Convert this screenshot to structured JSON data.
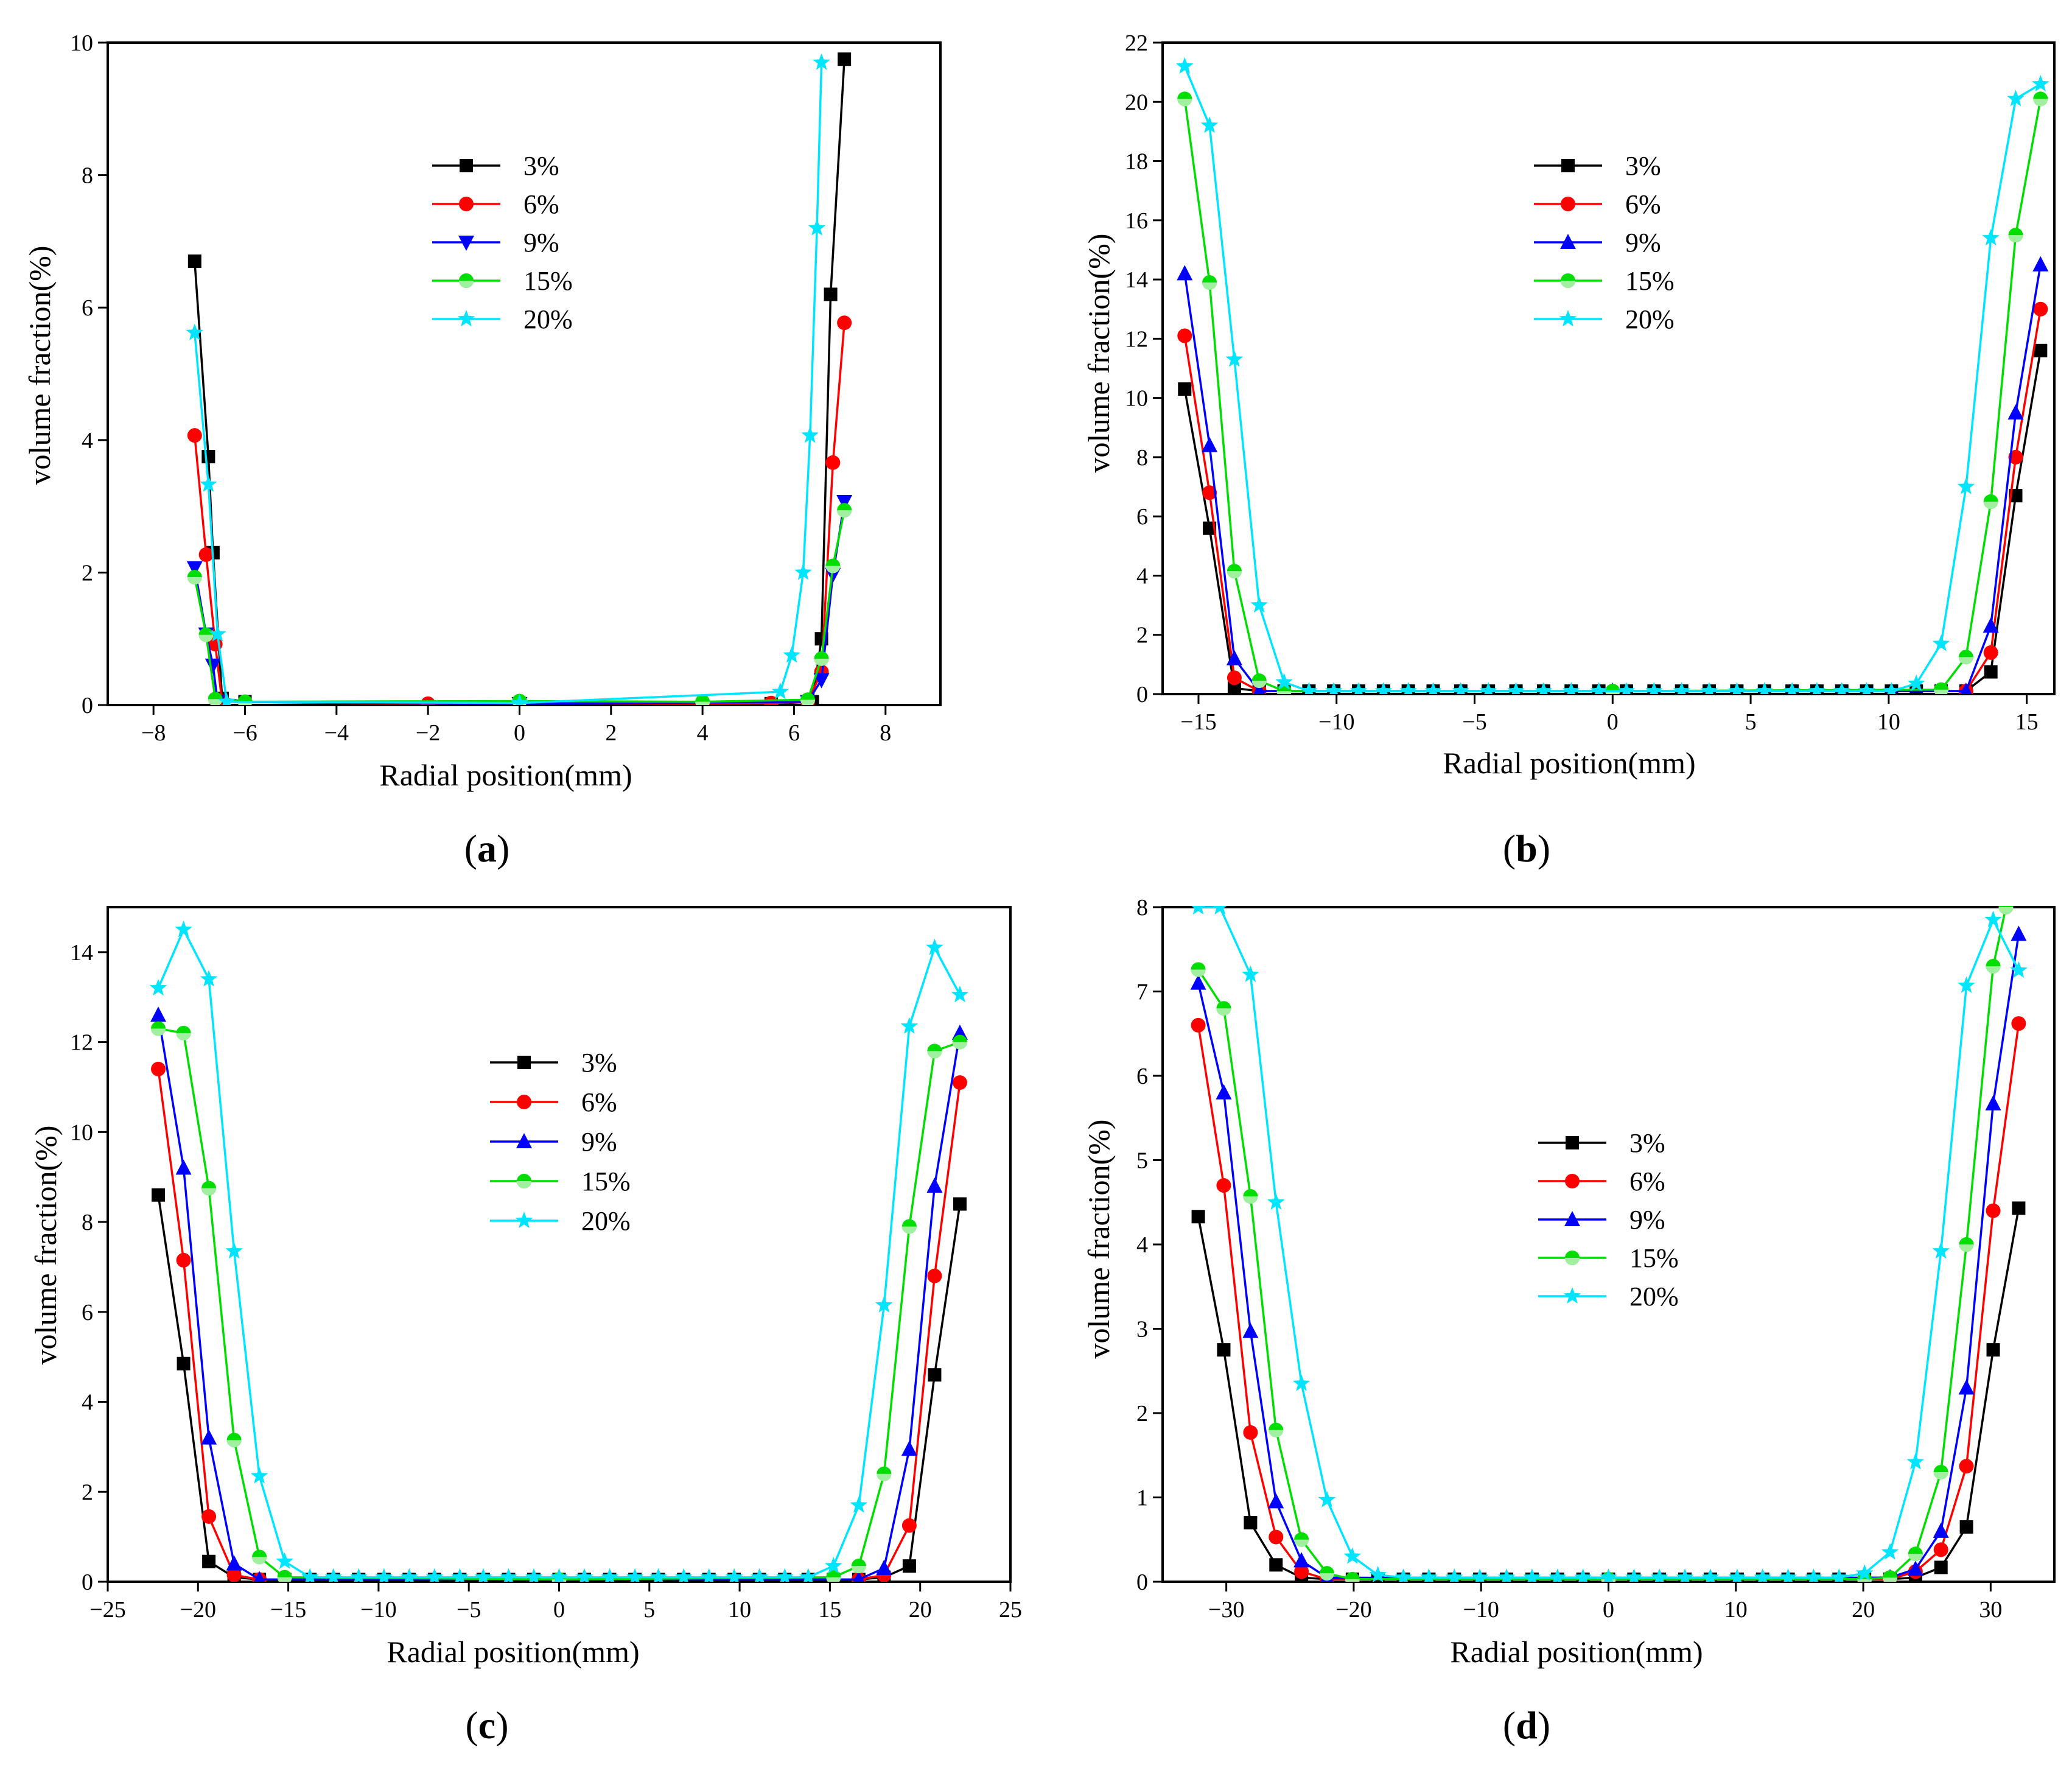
{
  "chart_data": [
    {
      "type": "line",
      "caption": "a",
      "title": "",
      "xlabel": "Radial position(mm)",
      "ylabel": "volume fraction(%)",
      "xlim": [
        -9,
        9.2
      ],
      "ylim": [
        0,
        10
      ],
      "xticks": [
        -8,
        -6,
        -4,
        -2,
        0,
        2,
        4,
        6,
        8
      ],
      "yticks": [
        0,
        2,
        4,
        6,
        8,
        10
      ],
      "legend": "center",
      "series": [
        {
          "name": "3%",
          "color": "#000000",
          "marker": "square",
          "x": [
            -7.1,
            -6.8,
            -6.7,
            -6.5,
            -6.0,
            0,
            5.5,
            6.4,
            6.6,
            6.8,
            7.1
          ],
          "y": [
            6.7,
            3.75,
            2.3,
            0.1,
            0.05,
            0.02,
            0.02,
            0.05,
            1.0,
            6.2,
            9.75
          ]
        },
        {
          "name": "6%",
          "color": "#ff0000",
          "marker": "circle",
          "x": [
            -7.1,
            -6.85,
            -6.65,
            -6.5,
            -2.0,
            0,
            4.0,
            5.5,
            6.3,
            6.6,
            6.85,
            7.1
          ],
          "y": [
            4.07,
            2.27,
            0.92,
            0.05,
            0.02,
            0.03,
            0.02,
            0.03,
            0.05,
            0.5,
            3.66,
            5.77
          ]
        },
        {
          "name": "9%",
          "color": "#0000ff",
          "marker": "triangle-down",
          "x": [
            -7.1,
            -6.85,
            -6.7,
            -6.6,
            0,
            6.3,
            6.6,
            6.85,
            7.1
          ],
          "y": [
            2.07,
            1.07,
            0.6,
            0.05,
            0.02,
            0.05,
            0.38,
            1.97,
            3.07
          ]
        },
        {
          "name": "15%",
          "color": "#00dd00",
          "marker": "circle-half",
          "x": [
            -7.1,
            -6.85,
            -6.65,
            -6.0,
            0,
            4.0,
            6.3,
            6.6,
            6.85,
            7.1
          ],
          "y": [
            1.93,
            1.06,
            0.09,
            0.05,
            0.06,
            0.05,
            0.08,
            0.7,
            2.1,
            2.94
          ]
        },
        {
          "name": "20%",
          "color": "#00e5ff",
          "marker": "star",
          "x": [
            -7.1,
            -6.8,
            -6.6,
            -6.4,
            0,
            5.7,
            5.95,
            6.2,
            6.35,
            6.5,
            6.6
          ],
          "y": [
            5.62,
            3.33,
            1.07,
            0.05,
            0.03,
            0.2,
            0.75,
            2.0,
            4.07,
            7.2,
            9.7
          ]
        }
      ],
      "legend_entries": [
        "3%",
        "6%",
        "9%",
        "15%",
        "20%"
      ]
    },
    {
      "type": "line",
      "caption": "b",
      "title": "",
      "xlabel": "Radial position(mm)",
      "ylabel": "volume fraction(%)",
      "xlim": [
        -16.3,
        16
      ],
      "ylim": [
        0,
        22
      ],
      "xticks": [
        -15,
        -10,
        -5,
        0,
        5,
        10,
        15
      ],
      "yticks": [
        0,
        2,
        4,
        6,
        8,
        10,
        12,
        14,
        16,
        18,
        20,
        22
      ],
      "legend": "center",
      "series": [
        {
          "name": "3%",
          "color": "#000000",
          "marker": "square",
          "x": [
            -15.5,
            -14.6,
            -13.7,
            -12.8,
            -11.9,
            -11.0,
            -10.1,
            -9.2,
            -8.3,
            -7.4,
            -6.5,
            -5.5,
            -4.5,
            -3.5,
            -2.5,
            -1.5,
            -0.5,
            0.5,
            1.5,
            2.5,
            3.5,
            4.5,
            5.5,
            6.5,
            7.4,
            8.3,
            9.2,
            10.1,
            11.0,
            11.9,
            12.8,
            13.7,
            14.6,
            15.5
          ],
          "y": [
            10.3,
            5.6,
            0.2,
            0.1,
            0.1,
            0.1,
            0.1,
            0.1,
            0.1,
            0.1,
            0.1,
            0.1,
            0.1,
            0.1,
            0.1,
            0.1,
            0.1,
            0.1,
            0.1,
            0.1,
            0.1,
            0.1,
            0.1,
            0.1,
            0.1,
            0.1,
            0.1,
            0.1,
            0.1,
            0.1,
            0.1,
            0.75,
            6.7,
            11.6
          ]
        },
        {
          "name": "6%",
          "color": "#ff0000",
          "marker": "circle",
          "x": [
            -15.5,
            -14.6,
            -13.7,
            -12.8,
            0,
            12.8,
            13.7,
            14.6,
            15.5
          ],
          "y": [
            12.1,
            6.8,
            0.55,
            0.1,
            0.1,
            0.1,
            1.4,
            8.0,
            13.0
          ]
        },
        {
          "name": "9%",
          "color": "#0000ff",
          "marker": "triangle",
          "x": [
            -15.5,
            -14.6,
            -13.7,
            -12.8,
            0,
            12.8,
            13.7,
            14.6,
            15.5
          ],
          "y": [
            14.2,
            8.4,
            1.2,
            0.1,
            0.1,
            0.1,
            2.3,
            9.5,
            14.5
          ]
        },
        {
          "name": "15%",
          "color": "#00dd00",
          "marker": "circle-half",
          "x": [
            -15.5,
            -14.6,
            -13.7,
            -12.8,
            -11.9,
            0,
            11.9,
            12.8,
            13.7,
            14.6,
            15.5
          ],
          "y": [
            20.1,
            13.9,
            4.15,
            0.45,
            0.1,
            0.1,
            0.15,
            1.25,
            6.5,
            15.5,
            20.1
          ]
        },
        {
          "name": "20%",
          "color": "#00e5ff",
          "marker": "star",
          "x": [
            -15.5,
            -14.6,
            -13.7,
            -12.8,
            -11.9,
            -11.0,
            -10.1,
            -9.2,
            -8.3,
            -7.4,
            -6.5,
            -5.5,
            -4.5,
            -3.5,
            -2.5,
            -1.5,
            -0.5,
            0.5,
            1.5,
            2.5,
            3.5,
            4.5,
            5.5,
            6.5,
            7.4,
            8.3,
            9.2,
            10.1,
            11.0,
            11.9,
            12.8,
            13.7,
            14.6,
            15.5
          ],
          "y": [
            21.2,
            19.2,
            11.3,
            3.0,
            0.4,
            0.1,
            0.1,
            0.1,
            0.1,
            0.1,
            0.1,
            0.1,
            0.1,
            0.1,
            0.1,
            0.1,
            0.1,
            0.1,
            0.1,
            0.1,
            0.1,
            0.1,
            0.1,
            0.1,
            0.1,
            0.1,
            0.1,
            0.1,
            0.35,
            1.7,
            7.0,
            15.4,
            20.1,
            20.6
          ]
        }
      ],
      "legend_entries": [
        "3%",
        "6%",
        "9%",
        "15%",
        "20%"
      ]
    },
    {
      "type": "line",
      "caption": "c",
      "title": "",
      "xlabel": "Radial position(mm)",
      "ylabel": "volume fraction(%)",
      "xlim": [
        -25,
        25
      ],
      "ylim": [
        0,
        15
      ],
      "xticks": [
        -25,
        -20,
        -15,
        -10,
        -5,
        0,
        5,
        10,
        15,
        20,
        25
      ],
      "yticks": [
        0,
        2,
        4,
        6,
        8,
        10,
        12,
        14
      ],
      "legend": "center",
      "series": [
        {
          "name": "3%",
          "color": "#000000",
          "marker": "square",
          "x": [
            -22.2,
            -20.8,
            -19.4,
            -18.0,
            -16.6,
            -15.2,
            -13.8,
            -12.5,
            -11.1,
            -9.7,
            -8.3,
            -6.9,
            -5.5,
            -4.2,
            -2.8,
            -1.4,
            0,
            1.4,
            2.8,
            4.2,
            5.5,
            6.9,
            8.3,
            9.7,
            11.1,
            12.5,
            13.8,
            15.2,
            16.6,
            18.0,
            19.4,
            20.8,
            22.2
          ],
          "y": [
            8.6,
            4.85,
            0.45,
            0.1,
            0.05,
            0.05,
            0.05,
            0.05,
            0.05,
            0.05,
            0.05,
            0.05,
            0.05,
            0.05,
            0.05,
            0.05,
            0.05,
            0.05,
            0.05,
            0.05,
            0.05,
            0.05,
            0.05,
            0.05,
            0.05,
            0.05,
            0.05,
            0.05,
            0.05,
            0.1,
            0.35,
            4.6,
            8.4
          ]
        },
        {
          "name": "6%",
          "color": "#ff0000",
          "marker": "circle",
          "x": [
            -22.2,
            -20.8,
            -19.4,
            -18.0,
            -16.6,
            0,
            16.6,
            18.0,
            19.4,
            20.8,
            22.2
          ],
          "y": [
            11.4,
            7.15,
            1.45,
            0.15,
            0.05,
            0.05,
            0.05,
            0.15,
            1.25,
            6.8,
            11.1
          ]
        },
        {
          "name": "9%",
          "color": "#0000ff",
          "marker": "triangle",
          "x": [
            -22.2,
            -20.8,
            -19.4,
            -18.0,
            -16.6,
            0,
            16.6,
            18.0,
            19.4,
            20.8,
            22.2
          ],
          "y": [
            12.6,
            9.2,
            3.2,
            0.4,
            0.05,
            0.05,
            0.05,
            0.3,
            2.95,
            8.8,
            12.2
          ]
        },
        {
          "name": "15%",
          "color": "#00dd00",
          "marker": "circle-half",
          "x": [
            -22.2,
            -20.8,
            -19.4,
            -18.0,
            -16.6,
            -15.2,
            0,
            15.2,
            16.6,
            18.0,
            19.4,
            20.8,
            22.2
          ],
          "y": [
            12.3,
            12.2,
            8.75,
            3.15,
            0.55,
            0.1,
            0.05,
            0.1,
            0.35,
            2.4,
            7.9,
            11.8,
            12.0
          ]
        },
        {
          "name": "20%",
          "color": "#00e5ff",
          "marker": "star",
          "x": [
            -22.2,
            -20.8,
            -19.4,
            -18.0,
            -16.6,
            -15.2,
            -13.8,
            -12.5,
            -11.1,
            -9.7,
            -8.3,
            -6.9,
            -5.5,
            -4.2,
            -2.8,
            -1.4,
            0,
            1.4,
            2.8,
            4.2,
            5.5,
            6.9,
            8.3,
            9.7,
            11.1,
            12.5,
            13.8,
            15.2,
            16.6,
            18.0,
            19.4,
            20.8,
            22.2
          ],
          "y": [
            13.2,
            14.5,
            13.4,
            7.35,
            2.35,
            0.45,
            0.1,
            0.1,
            0.1,
            0.1,
            0.1,
            0.1,
            0.1,
            0.1,
            0.1,
            0.1,
            0.1,
            0.1,
            0.1,
            0.1,
            0.1,
            0.1,
            0.1,
            0.1,
            0.1,
            0.1,
            0.1,
            0.35,
            1.7,
            6.15,
            12.35,
            14.1,
            13.05
          ]
        }
      ],
      "legend_entries": [
        "3%",
        "6%",
        "9%",
        "15%",
        "20%"
      ]
    },
    {
      "type": "line",
      "caption": "d",
      "title": "",
      "xlabel": "Radial position(mm)",
      "ylabel": "volume fraction(%)",
      "xlim": [
        -35,
        35
      ],
      "ylim": [
        0,
        8
      ],
      "xticks": [
        -30,
        -20,
        -10,
        0,
        10,
        20,
        30
      ],
      "yticks": [
        0,
        1,
        2,
        3,
        4,
        5,
        6,
        7,
        8
      ],
      "legend": "center",
      "series": [
        {
          "name": "3%",
          "color": "#000000",
          "marker": "square",
          "x": [
            -32.2,
            -30.2,
            -28.1,
            -26.1,
            -24.1,
            -22.1,
            -20.1,
            -18.1,
            -16.1,
            -14.1,
            -12.1,
            -10.1,
            -8,
            -6,
            -4,
            -2,
            0,
            2,
            4,
            6,
            8,
            10.1,
            12.1,
            14.1,
            16.1,
            18.1,
            20.1,
            22.1,
            24.1,
            26.1,
            28.1,
            30.2,
            32.2
          ],
          "y": [
            4.33,
            2.75,
            0.7,
            0.2,
            0.05,
            0.03,
            0.03,
            0.03,
            0.03,
            0.03,
            0.03,
            0.03,
            0.03,
            0.03,
            0.03,
            0.03,
            0.03,
            0.03,
            0.03,
            0.03,
            0.03,
            0.03,
            0.03,
            0.03,
            0.03,
            0.03,
            0.03,
            0.03,
            0.05,
            0.17,
            0.65,
            2.75,
            4.43
          ]
        },
        {
          "name": "6%",
          "color": "#ff0000",
          "marker": "circle",
          "x": [
            -32.2,
            -30.2,
            -28.1,
            -26.1,
            -24.1,
            -22.1,
            0,
            22.1,
            24.1,
            26.1,
            28.1,
            30.2,
            32.2
          ],
          "y": [
            6.6,
            4.7,
            1.77,
            0.53,
            0.12,
            0.03,
            0.03,
            0.03,
            0.12,
            0.38,
            1.37,
            4.4,
            6.62
          ]
        },
        {
          "name": "9%",
          "color": "#0000ff",
          "marker": "triangle",
          "x": [
            -32.2,
            -30.2,
            -28.1,
            -26.1,
            -24.1,
            -22.1,
            0,
            22.1,
            24.1,
            26.1,
            28.1,
            30.2,
            32.2
          ],
          "y": [
            7.1,
            5.8,
            2.97,
            0.95,
            0.25,
            0.05,
            0.03,
            0.05,
            0.15,
            0.6,
            2.3,
            5.67,
            7.68
          ]
        },
        {
          "name": "15%",
          "color": "#00dd00",
          "marker": "circle-half",
          "x": [
            -32.2,
            -30.2,
            -28.1,
            -26.1,
            -24.1,
            -22.1,
            -20.1,
            0,
            20.1,
            22.1,
            24.1,
            26.1,
            28.1,
            30.2,
            31.2
          ],
          "y": [
            7.26,
            6.8,
            4.57,
            1.8,
            0.5,
            0.1,
            0.03,
            0.03,
            0.03,
            0.05,
            0.33,
            1.3,
            4.0,
            7.3,
            8.0
          ]
        },
        {
          "name": "20%",
          "color": "#00e5ff",
          "marker": "star",
          "x": [
            -32.2,
            -30.5,
            -28.1,
            -26.1,
            -24.1,
            -22.1,
            -20.1,
            -18.1,
            -16.1,
            -14.1,
            -12.1,
            -10.1,
            -8,
            -6,
            -4,
            -2,
            0,
            2,
            4,
            6,
            8,
            10.1,
            12.1,
            14.1,
            16.1,
            18.1,
            20.1,
            22.1,
            24.1,
            26.1,
            28.1,
            30.2,
            32.2
          ],
          "y": [
            8.0,
            8.0,
            7.2,
            4.5,
            2.35,
            0.97,
            0.3,
            0.08,
            0.05,
            0.05,
            0.05,
            0.05,
            0.05,
            0.05,
            0.05,
            0.05,
            0.05,
            0.05,
            0.05,
            0.05,
            0.05,
            0.05,
            0.05,
            0.05,
            0.05,
            0.05,
            0.1,
            0.35,
            1.42,
            3.92,
            7.07,
            7.85,
            7.25
          ]
        }
      ],
      "legend_entries": [
        "3%",
        "6%",
        "9%",
        "15%",
        "20%"
      ]
    }
  ]
}
